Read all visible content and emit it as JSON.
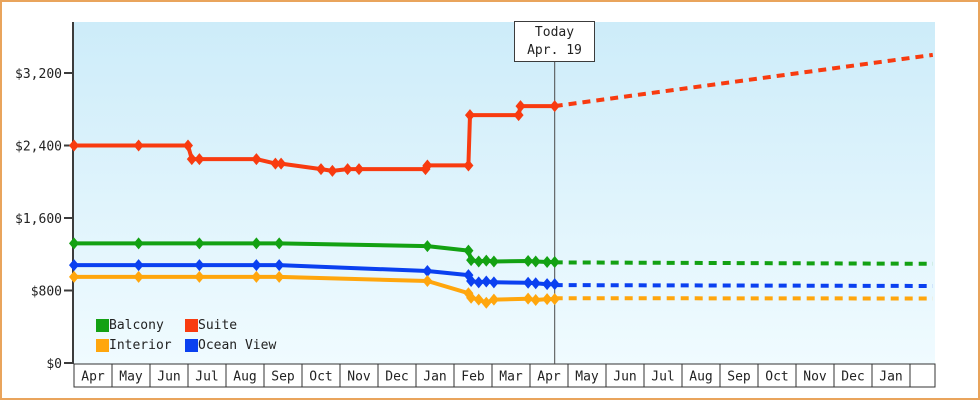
{
  "chart_data": {
    "type": "line",
    "title": "",
    "x_axis_month_labels": [
      "Apr",
      "May",
      "Jun",
      "Jul",
      "Aug",
      "Sep",
      "Oct",
      "Nov",
      "Dec",
      "Jan",
      "Feb",
      "Mar",
      "Apr",
      "May",
      "Jun",
      "Jul",
      "Aug",
      "Sep",
      "Oct",
      "Nov",
      "Dec",
      "Jan"
    ],
    "y_ticks": [
      {
        "label": "$0",
        "value": 0
      },
      {
        "label": "$800",
        "value": 800
      },
      {
        "label": "$1,600",
        "value": 1600
      },
      {
        "label": "$2,400",
        "value": 2400
      },
      {
        "label": "$3,200",
        "value": 3200
      }
    ],
    "axis_ranges": {
      "x_months": [
        0,
        22.6
      ],
      "y_dollars": [
        0,
        3770
      ]
    },
    "legend_position": "bottom-left-inside",
    "grid": false,
    "today_annotation": {
      "line1": "Today",
      "line2": "Apr. 19",
      "month_position": 12.65
    },
    "series": [
      {
        "name": "Balcony",
        "color": "#13a113",
        "history": [
          [
            0,
            1320
          ],
          [
            1.7,
            1320
          ],
          [
            3.3,
            1320
          ],
          [
            4.8,
            1320
          ],
          [
            5.4,
            1320
          ],
          [
            9.3,
            1290
          ],
          [
            10.38,
            1240
          ],
          [
            10.45,
            1135
          ],
          [
            10.65,
            1120
          ],
          [
            10.85,
            1130
          ],
          [
            11.05,
            1120
          ],
          [
            11.95,
            1125
          ],
          [
            12.15,
            1120
          ],
          [
            12.45,
            1115
          ],
          [
            12.65,
            1115
          ]
        ],
        "forecast": [
          [
            12.65,
            1110
          ],
          [
            22.6,
            1095
          ]
        ]
      },
      {
        "name": "Suite",
        "color": "#f83b10",
        "history": [
          [
            0,
            2400
          ],
          [
            1.7,
            2400
          ],
          [
            3.0,
            2400
          ],
          [
            3.1,
            2250
          ],
          [
            3.3,
            2250
          ],
          [
            4.8,
            2250
          ],
          [
            5.3,
            2200
          ],
          [
            5.45,
            2200
          ],
          [
            6.5,
            2140
          ],
          [
            6.8,
            2120
          ],
          [
            7.2,
            2140
          ],
          [
            7.5,
            2140
          ],
          [
            9.25,
            2140
          ],
          [
            9.3,
            2180
          ],
          [
            10.38,
            2180
          ],
          [
            10.42,
            2735
          ],
          [
            11.7,
            2735
          ],
          [
            11.75,
            2835
          ],
          [
            12.65,
            2835
          ]
        ],
        "forecast": [
          [
            12.65,
            2835
          ],
          [
            22.6,
            3400
          ]
        ]
      },
      {
        "name": "Interior",
        "color": "#ffa60d",
        "history": [
          [
            0,
            950
          ],
          [
            1.7,
            950
          ],
          [
            3.3,
            950
          ],
          [
            4.8,
            950
          ],
          [
            5.4,
            950
          ],
          [
            9.3,
            905
          ],
          [
            10.38,
            770
          ],
          [
            10.45,
            720
          ],
          [
            10.65,
            700
          ],
          [
            10.85,
            665
          ],
          [
            11.05,
            700
          ],
          [
            11.95,
            710
          ],
          [
            12.15,
            695
          ],
          [
            12.45,
            705
          ],
          [
            12.65,
            705
          ]
        ],
        "forecast": [
          [
            12.65,
            715
          ],
          [
            22.6,
            712
          ]
        ]
      },
      {
        "name": "Ocean View",
        "color": "#0a40f0",
        "history": [
          [
            0,
            1080
          ],
          [
            1.7,
            1080
          ],
          [
            3.3,
            1080
          ],
          [
            4.8,
            1080
          ],
          [
            5.4,
            1080
          ],
          [
            9.3,
            1015
          ],
          [
            10.38,
            970
          ],
          [
            10.45,
            905
          ],
          [
            10.65,
            890
          ],
          [
            10.85,
            900
          ],
          [
            11.05,
            890
          ],
          [
            11.95,
            885
          ],
          [
            12.15,
            880
          ],
          [
            12.45,
            870
          ],
          [
            12.65,
            870
          ]
        ],
        "forecast": [
          [
            12.65,
            860
          ],
          [
            22.6,
            850
          ]
        ]
      }
    ],
    "colors": {
      "plot_bg_top": "#cdecf9",
      "plot_bg_bottom": "#f0fbff",
      "axis": "#3c3c3c",
      "frame_border": "#e9a45c",
      "text": "#222222"
    }
  }
}
